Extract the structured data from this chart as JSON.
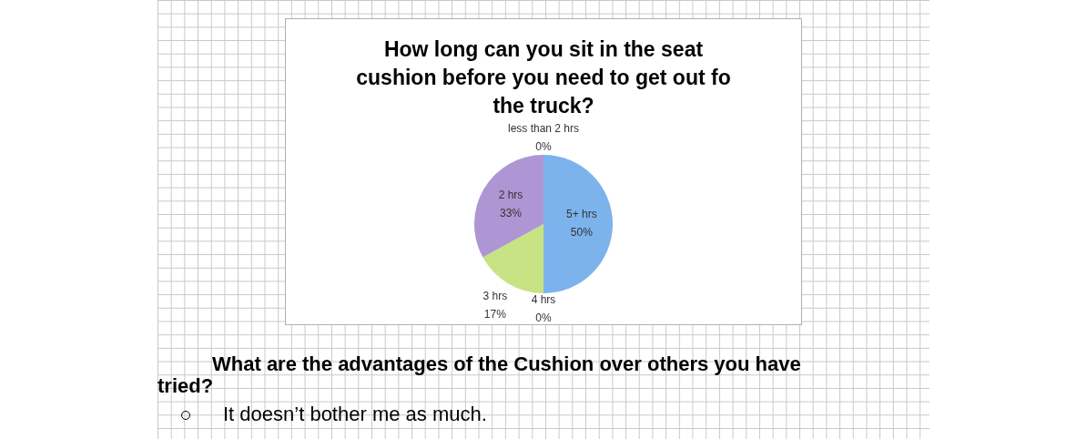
{
  "chart_data": {
    "type": "pie",
    "title": "How long can you sit in the seat cushion before you need to get out fo the truck?",
    "categories": [
      "5+ hrs",
      "4 hrs",
      "3 hrs",
      "2 hrs",
      "less than 2 hrs"
    ],
    "values": [
      50,
      0,
      17,
      33,
      0
    ],
    "colors": [
      "#7db3ec",
      "#c0504d",
      "#c8e383",
      "#ae96d4",
      "#4bacc6"
    ],
    "value_labels": [
      "50%",
      "0%",
      "17%",
      "33%",
      "0%"
    ],
    "annotations": [
      "What are the advantages of the Cushion over others you have tried?",
      "It doesn’t bother me as much."
    ]
  }
}
